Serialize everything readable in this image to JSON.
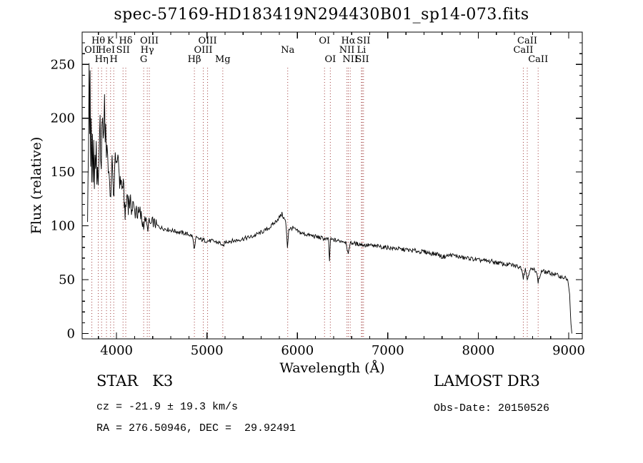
{
  "title": "spec-57169-HD183419N294430B01_sp14-073.fits",
  "footer": {
    "class_label": "STAR   K3",
    "cz": "cz = -21.9 ± 19.3 km/s",
    "radec": "RA = 276.50946, DEC =  29.92491",
    "survey": "LAMOST DR3",
    "obs_date": "Obs-Date: 20150526"
  },
  "chart_data": {
    "type": "line",
    "title": "spec-57169-HD183419N294430B01_sp14-073.fits",
    "xlabel": "Wavelength (Å)",
    "ylabel": "Flux (relative)",
    "xlim": [
      3620,
      9150
    ],
    "ylim": [
      -5,
      280
    ],
    "x_major_ticks": [
      4000,
      5000,
      6000,
      7000,
      8000,
      9000
    ],
    "y_major_ticks": [
      0,
      50,
      100,
      150,
      200,
      250
    ],
    "x_minor_step": 200,
    "y_minor_step": 10,
    "grid": false,
    "line_color": "#000000",
    "marker_line_color": "#a03c3c",
    "noise": {
      "blue_end_wl": 4300,
      "blue_amp": 10,
      "mid_end_wl": 4450,
      "mid_amp": 5,
      "amp": 2
    },
    "line_markers": [
      {
        "wl": 3727,
        "label": "OII",
        "row": 1
      },
      {
        "wl": 3798,
        "label": "Hθ",
        "row": 0
      },
      {
        "wl": 3835,
        "label": "Hη",
        "row": 2
      },
      {
        "wl": 3889,
        "label": "HeI",
        "row": 1
      },
      {
        "wl": 3934,
        "label": "K",
        "row": 0
      },
      {
        "wl": 3969,
        "label": "H",
        "row": 2
      },
      {
        "wl": 4072,
        "label": "SII",
        "row": 1
      },
      {
        "wl": 4102,
        "label": "Hδ",
        "row": 0
      },
      {
        "wl": 4300,
        "label": "G",
        "row": 2
      },
      {
        "wl": 4340,
        "label": "Hγ",
        "row": 1
      },
      {
        "wl": 4363,
        "label": "OIII",
        "row": 0
      },
      {
        "wl": 4861,
        "label": "Hβ",
        "row": 2
      },
      {
        "wl": 4959,
        "label": "OIII",
        "row": 1
      },
      {
        "wl": 5007,
        "label": "OIII",
        "row": 0
      },
      {
        "wl": 5175,
        "label": "Mg",
        "row": 2
      },
      {
        "wl": 5893,
        "label": "Na",
        "row": 1
      },
      {
        "wl": 6300,
        "label": "OI",
        "row": 0
      },
      {
        "wl": 6364,
        "label": "OI",
        "row": 2
      },
      {
        "wl": 6548,
        "label": "NII",
        "row": 1
      },
      {
        "wl": 6563,
        "label": "Hα",
        "row": 0
      },
      {
        "wl": 6584,
        "label": "NII",
        "row": 2
      },
      {
        "wl": 6708,
        "label": "Li",
        "row": 1
      },
      {
        "wl": 6717,
        "label": "SII",
        "row": 2
      },
      {
        "wl": 6731,
        "label": "SII",
        "row": 0
      },
      {
        "wl": 8498,
        "label": "CaII",
        "row": 1
      },
      {
        "wl": 8542,
        "label": "CaII",
        "row": 0
      },
      {
        "wl": 8662,
        "label": "CaII",
        "row": 2
      }
    ],
    "series": [
      {
        "name": "spectrum",
        "points": [
          [
            3680,
            110
          ],
          [
            3690,
            170
          ],
          [
            3697,
            252
          ],
          [
            3702,
            190
          ],
          [
            3708,
            238
          ],
          [
            3714,
            150
          ],
          [
            3720,
            200
          ],
          [
            3727,
            140
          ],
          [
            3734,
            185
          ],
          [
            3741,
            150
          ],
          [
            3748,
            178
          ],
          [
            3755,
            132
          ],
          [
            3762,
            168
          ],
          [
            3769,
            146
          ],
          [
            3776,
            182
          ],
          [
            3783,
            140
          ],
          [
            3790,
            160
          ],
          [
            3797,
            128
          ],
          [
            3804,
            152
          ],
          [
            3811,
            174
          ],
          [
            3818,
            196
          ],
          [
            3825,
            170
          ],
          [
            3832,
            150
          ],
          [
            3839,
            186
          ],
          [
            3846,
            206
          ],
          [
            3853,
            176
          ],
          [
            3860,
            196
          ],
          [
            3867,
            214
          ],
          [
            3874,
            184
          ],
          [
            3881,
            198
          ],
          [
            3888,
            162
          ],
          [
            3895,
            178
          ],
          [
            3902,
            168
          ],
          [
            3909,
            148
          ],
          [
            3916,
            158
          ],
          [
            3923,
            138
          ],
          [
            3930,
            118
          ],
          [
            3937,
            132
          ],
          [
            3944,
            150
          ],
          [
            3951,
            160
          ],
          [
            3958,
            142
          ],
          [
            3965,
            126
          ],
          [
            3972,
            136
          ],
          [
            3979,
            152
          ],
          [
            3986,
            162
          ],
          [
            3993,
            154
          ],
          [
            4000,
            168
          ],
          [
            4010,
            152
          ],
          [
            4020,
            164
          ],
          [
            4030,
            148
          ],
          [
            4040,
            138
          ],
          [
            4050,
            146
          ],
          [
            4060,
            132
          ],
          [
            4070,
            140
          ],
          [
            4080,
            130
          ],
          [
            4090,
            118
          ],
          [
            4100,
            110
          ],
          [
            4110,
            124
          ],
          [
            4120,
            130
          ],
          [
            4130,
            120
          ],
          [
            4140,
            127
          ],
          [
            4150,
            116
          ],
          [
            4160,
            123
          ],
          [
            4170,
            114
          ],
          [
            4180,
            119
          ],
          [
            4200,
            113
          ],
          [
            4220,
            117
          ],
          [
            4240,
            109
          ],
          [
            4260,
            111
          ],
          [
            4280,
            105
          ],
          [
            4300,
            101
          ],
          [
            4320,
            107
          ],
          [
            4340,
            97
          ],
          [
            4360,
            103
          ],
          [
            4380,
            101
          ],
          [
            4400,
            104
          ],
          [
            4450,
            100
          ],
          [
            4500,
            98
          ],
          [
            4550,
            97
          ],
          [
            4600,
            96
          ],
          [
            4650,
            95
          ],
          [
            4700,
            94
          ],
          [
            4750,
            93
          ],
          [
            4800,
            92
          ],
          [
            4840,
            90
          ],
          [
            4861,
            78
          ],
          [
            4880,
            89
          ],
          [
            4900,
            88
          ],
          [
            4950,
            87
          ],
          [
            5000,
            86
          ],
          [
            5050,
            86
          ],
          [
            5100,
            85
          ],
          [
            5150,
            84
          ],
          [
            5175,
            80
          ],
          [
            5200,
            85
          ],
          [
            5250,
            86
          ],
          [
            5300,
            86
          ],
          [
            5350,
            87
          ],
          [
            5400,
            88
          ],
          [
            5450,
            89
          ],
          [
            5500,
            90
          ],
          [
            5550,
            92
          ],
          [
            5600,
            94
          ],
          [
            5650,
            96
          ],
          [
            5700,
            99
          ],
          [
            5750,
            103
          ],
          [
            5800,
            108
          ],
          [
            5830,
            111
          ],
          [
            5850,
            107
          ],
          [
            5870,
            104
          ],
          [
            5890,
            80
          ],
          [
            5905,
            97
          ],
          [
            5950,
            98
          ],
          [
            6000,
            95
          ],
          [
            6050,
            93
          ],
          [
            6100,
            92
          ],
          [
            6150,
            91
          ],
          [
            6200,
            90
          ],
          [
            6250,
            89
          ],
          [
            6300,
            88
          ],
          [
            6345,
            87
          ],
          [
            6355,
            66
          ],
          [
            6365,
            87
          ],
          [
            6400,
            87
          ],
          [
            6450,
            86
          ],
          [
            6500,
            86
          ],
          [
            6540,
            85
          ],
          [
            6563,
            72
          ],
          [
            6580,
            84
          ],
          [
            6620,
            84
          ],
          [
            6660,
            83
          ],
          [
            6700,
            83
          ],
          [
            6750,
            82
          ],
          [
            6800,
            82
          ],
          [
            6850,
            81
          ],
          [
            6900,
            81
          ],
          [
            6950,
            80
          ],
          [
            7000,
            80
          ],
          [
            7050,
            79
          ],
          [
            7100,
            79
          ],
          [
            7150,
            78
          ],
          [
            7200,
            78
          ],
          [
            7250,
            77
          ],
          [
            7300,
            77
          ],
          [
            7350,
            76
          ],
          [
            7400,
            76
          ],
          [
            7450,
            75
          ],
          [
            7500,
            74
          ],
          [
            7550,
            74
          ],
          [
            7600,
            71
          ],
          [
            7650,
            72
          ],
          [
            7700,
            73
          ],
          [
            7750,
            72
          ],
          [
            7800,
            71
          ],
          [
            7850,
            70
          ],
          [
            7900,
            70
          ],
          [
            7950,
            69
          ],
          [
            8000,
            68
          ],
          [
            8050,
            68
          ],
          [
            8100,
            67
          ],
          [
            8150,
            67
          ],
          [
            8200,
            66
          ],
          [
            8250,
            65
          ],
          [
            8300,
            64
          ],
          [
            8350,
            64
          ],
          [
            8400,
            63
          ],
          [
            8450,
            62
          ],
          [
            8480,
            61
          ],
          [
            8498,
            52
          ],
          [
            8520,
            61
          ],
          [
            8542,
            50
          ],
          [
            8570,
            60
          ],
          [
            8600,
            59
          ],
          [
            8640,
            59
          ],
          [
            8662,
            48
          ],
          [
            8700,
            58
          ],
          [
            8750,
            57
          ],
          [
            8800,
            56
          ],
          [
            8850,
            55
          ],
          [
            8900,
            53
          ],
          [
            8950,
            52
          ],
          [
            8990,
            50
          ],
          [
            9010,
            35
          ],
          [
            9025,
            8
          ],
          [
            9035,
            0
          ]
        ]
      }
    ]
  }
}
